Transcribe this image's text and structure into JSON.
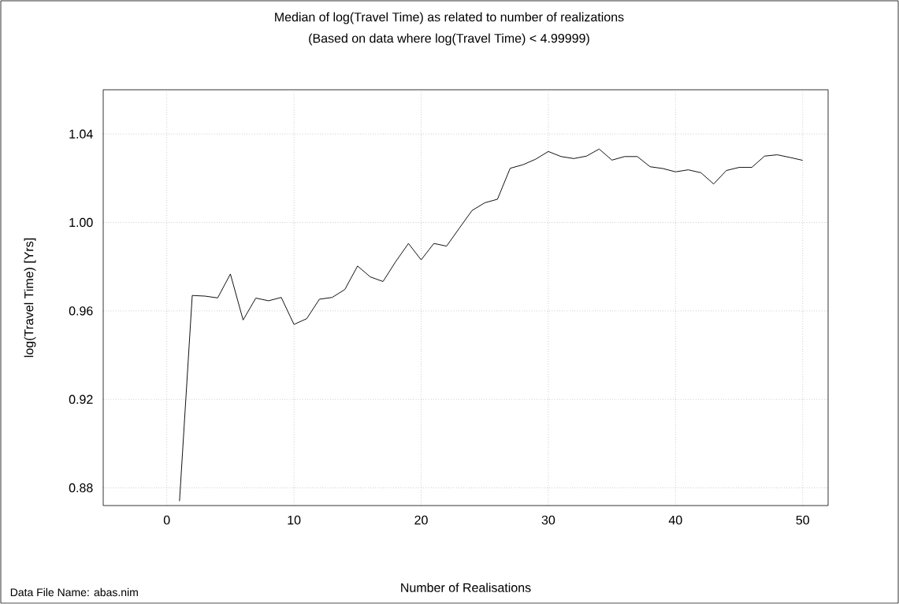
{
  "chart_data": {
    "type": "line",
    "title": "Median of log(Travel Time) as related to number of realizations",
    "subtitle": "(Based on data where log(Travel Time) < 4.99999)",
    "xlabel": "Number of Realisations",
    "ylabel": "log(Travel Time) [Yrs]",
    "annotations": [
      "Data File Name:  abas.nim"
    ],
    "x": [
      1,
      2,
      3,
      4,
      5,
      6,
      7,
      8,
      9,
      10,
      11,
      12,
      13,
      14,
      15,
      16,
      17,
      18,
      19,
      20,
      21,
      22,
      23,
      24,
      25,
      26,
      27,
      28,
      29,
      30,
      31,
      32,
      33,
      34,
      35,
      36,
      37,
      38,
      39,
      40,
      41,
      42,
      43,
      44,
      45,
      46,
      47,
      48,
      49,
      50
    ],
    "values": [
      0.874,
      0.967,
      0.9667,
      0.9659,
      0.9767,
      0.9559,
      0.9658,
      0.9646,
      0.9661,
      0.9539,
      0.9565,
      0.9653,
      0.9661,
      0.9697,
      0.9803,
      0.9754,
      0.9733,
      0.9823,
      0.9905,
      0.9831,
      0.9905,
      0.9893,
      0.9974,
      1.0054,
      1.0089,
      1.0105,
      1.0245,
      1.0261,
      1.0286,
      1.0321,
      1.0298,
      1.0289,
      1.03,
      1.0332,
      1.0282,
      1.0298,
      1.0298,
      1.0252,
      1.0244,
      1.0229,
      1.0238,
      1.0225,
      1.0174,
      1.0235,
      1.0249,
      1.0249,
      1.03,
      1.0306,
      1.0294,
      1.0281
    ],
    "color": "#000000",
    "xlim": [
      -5,
      52
    ],
    "ylim": [
      0.872,
      1.06
    ],
    "xticks": [
      0,
      10,
      20,
      30,
      40,
      50
    ],
    "yticks": [
      {
        "value": 0.88,
        "label": "0.88"
      },
      {
        "value": 0.92,
        "label": "0.92"
      },
      {
        "value": 0.96,
        "label": "0.96"
      },
      {
        "value": 1.0,
        "label": "1.00"
      },
      {
        "value": 1.04,
        "label": "1.04"
      }
    ],
    "grid": true
  }
}
